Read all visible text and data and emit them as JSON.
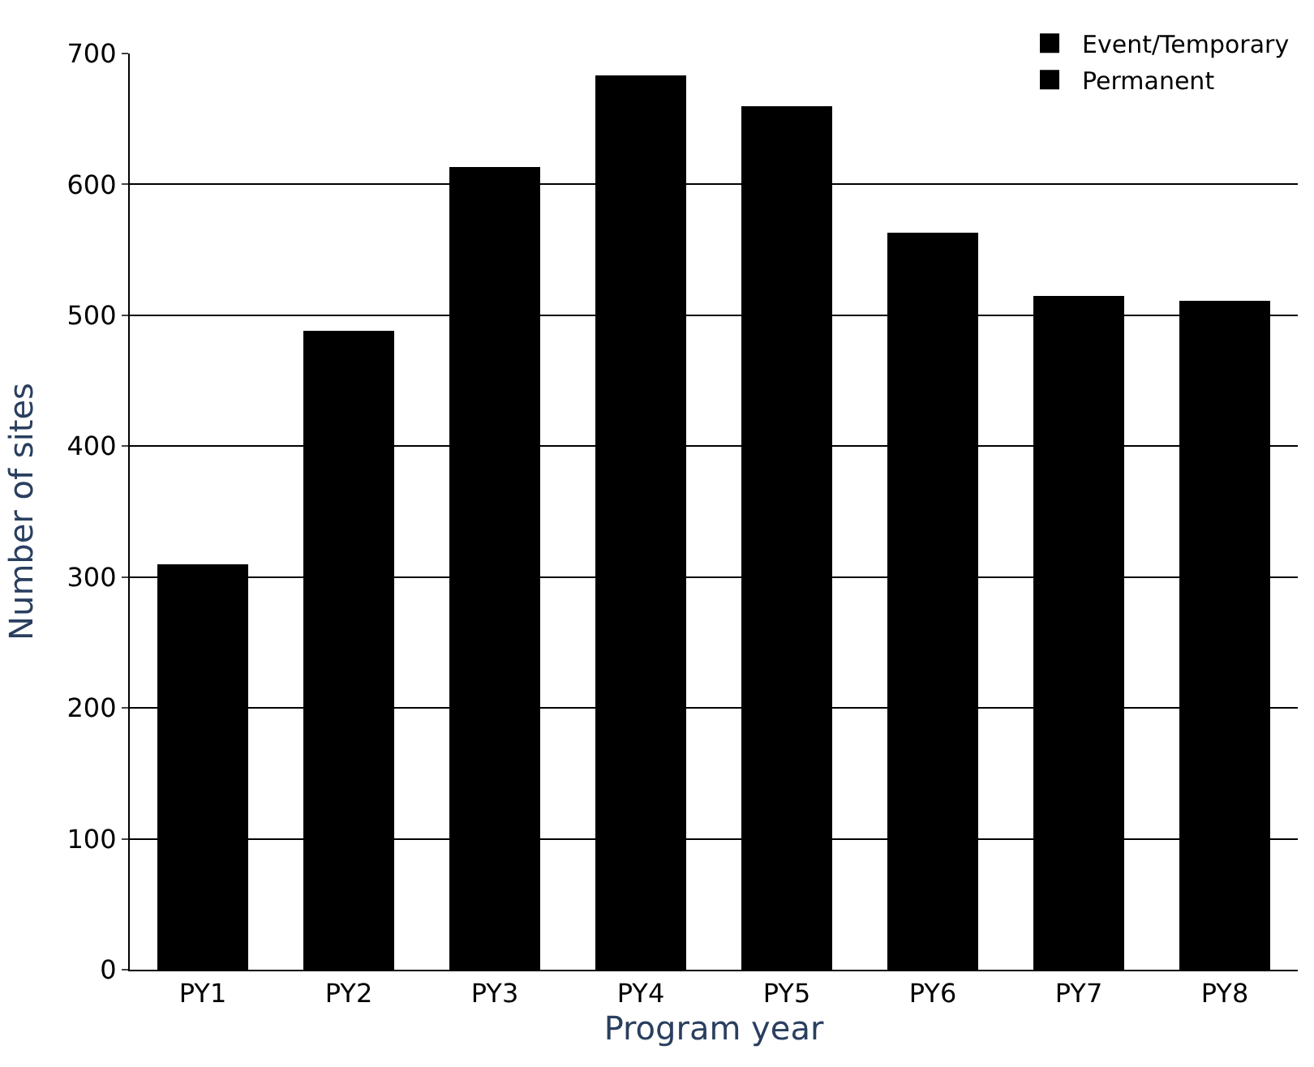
{
  "chart_data": {
    "type": "bar",
    "stacked": true,
    "xlabel": "Program year",
    "ylabel": "Number of sites",
    "categories": [
      "PY1",
      "PY2",
      "PY3",
      "PY4",
      "PY5",
      "PY6",
      "PY7",
      "PY8"
    ],
    "series": [
      {
        "name": "Permanent",
        "color": "#000000",
        "values": [
          255,
          390,
          444,
          479,
          467,
          426,
          397,
          358
        ]
      },
      {
        "name": "Event/Temporary",
        "color": "#000000",
        "values": [
          55,
          98,
          169,
          204,
          193,
          137,
          118,
          153
        ]
      }
    ],
    "ylim": [
      0,
      700
    ],
    "yticks": [
      0,
      100,
      200,
      300,
      400,
      500,
      600,
      700
    ],
    "grid": "y",
    "legend": "top right"
  }
}
